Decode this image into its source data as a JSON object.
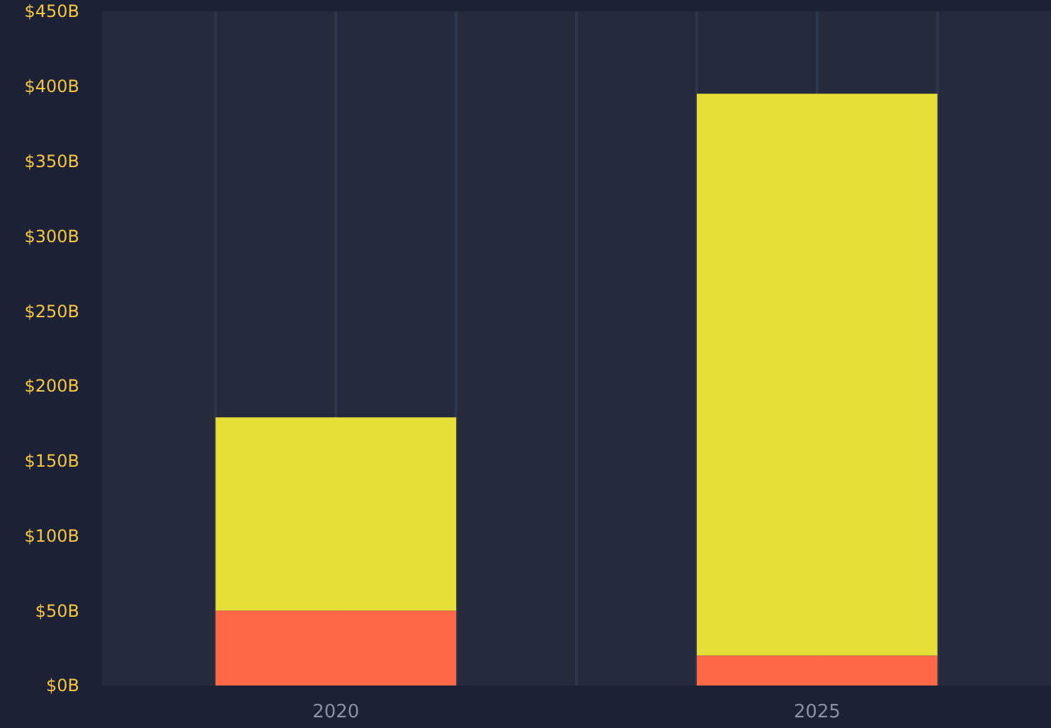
{
  "chart_data": {
    "type": "bar",
    "stacked": true,
    "categories": [
      "2020",
      "2025"
    ],
    "series": [
      {
        "color": "#ff6846",
        "values": [
          50,
          20
        ]
      },
      {
        "color": "#e6df38",
        "values": [
          129,
          375
        ]
      }
    ],
    "ylim": [
      0,
      450
    ],
    "yticks": [
      {
        "value": 0,
        "label": "$0B"
      },
      {
        "value": 50,
        "label": "$50B"
      },
      {
        "value": 100,
        "label": "$100B"
      },
      {
        "value": 150,
        "label": "$150B"
      },
      {
        "value": 200,
        "label": "$200B"
      },
      {
        "value": 250,
        "label": "$250B"
      },
      {
        "value": 300,
        "label": "$300B"
      },
      {
        "value": 350,
        "label": "$350B"
      },
      {
        "value": 400,
        "label": "$400B"
      },
      {
        "value": 450,
        "label": "$450B"
      }
    ],
    "grid": "x"
  }
}
